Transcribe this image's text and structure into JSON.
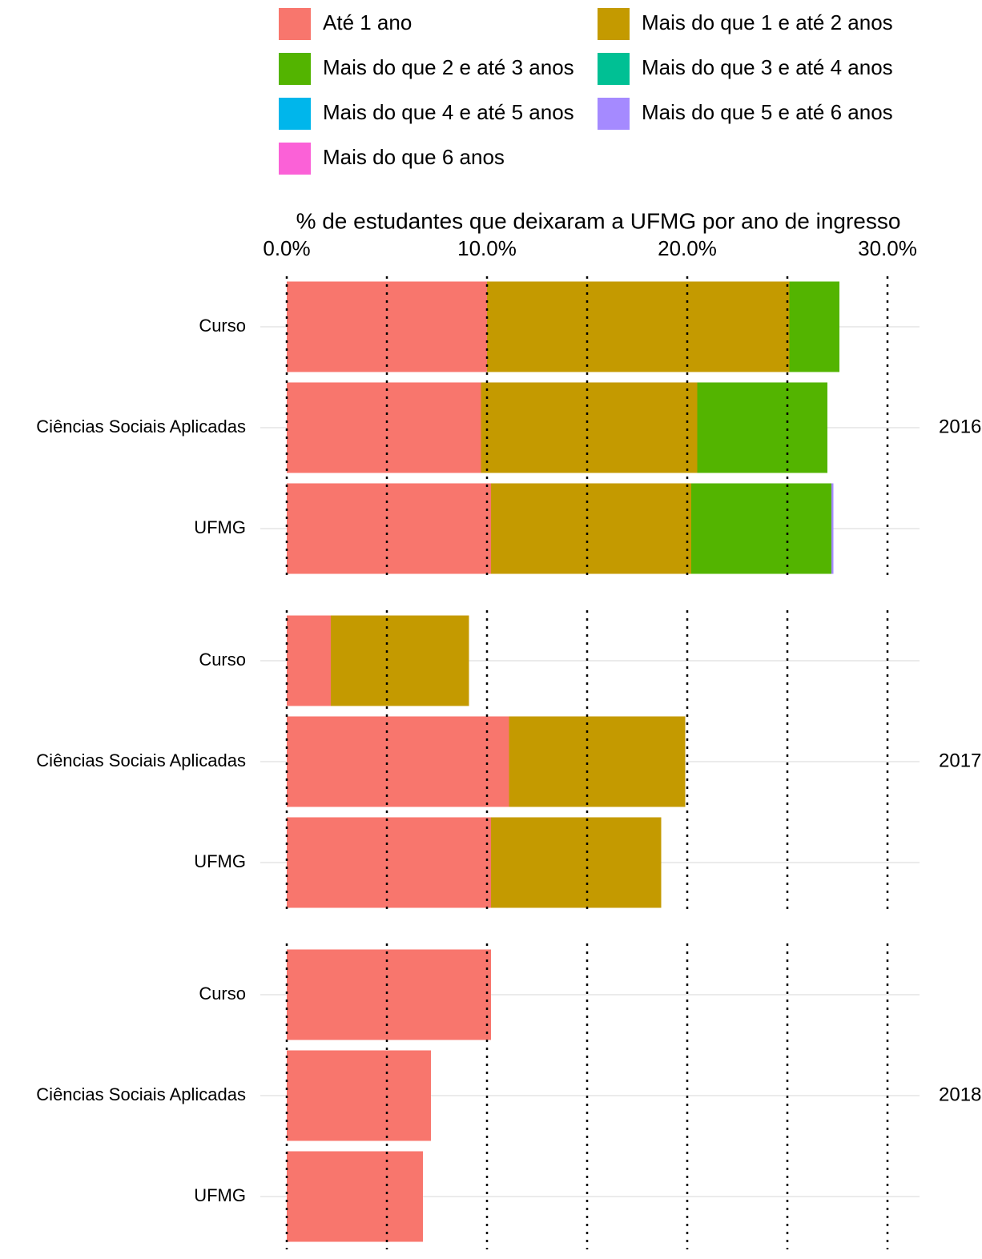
{
  "chart_data": {
    "type": "bar",
    "orientation": "horizontal",
    "stacked": true,
    "x_label": "% de estudantes que deixaram a UFMG por ano de ingresso",
    "groups": [
      "2016",
      "2017",
      "2018"
    ],
    "categories": [
      "Curso",
      "Ciências Sociais Aplicadas",
      "UFMG",
      "Curso",
      "Ciências Sociais Aplicadas",
      "UFMG",
      "Curso",
      "Ciências Sociais Aplicadas",
      "UFMG"
    ],
    "series": [
      {
        "name": "Até 1 ano",
        "color": "#F8766D",
        "values": [
          10.0,
          9.7,
          10.2,
          2.2,
          11.1,
          10.2,
          10.2,
          7.2,
          6.8
        ]
      },
      {
        "name": "Mais do que 1 e até 2 anos",
        "color": "#C49A00",
        "values": [
          15.1,
          10.8,
          10.0,
          6.9,
          8.8,
          8.5,
          0,
          0,
          0
        ]
      },
      {
        "name": "Mais do que 2 e até 3 anos",
        "color": "#53B400",
        "values": [
          2.5,
          6.5,
          7.0,
          0,
          0,
          0,
          0,
          0,
          0
        ]
      },
      {
        "name": "Mais do que 3 e até 4 anos",
        "color": "#00C094",
        "values": [
          0,
          0,
          0,
          0,
          0,
          0,
          0,
          0,
          0
        ]
      },
      {
        "name": "Mais do que 4 e até 5 anos",
        "color": "#00B6EB",
        "values": [
          0,
          0,
          0,
          0,
          0,
          0,
          0,
          0,
          0
        ]
      },
      {
        "name": "Mais do que 5 e até 6 anos",
        "color": "#A58AFF",
        "values": [
          0,
          0,
          0.1,
          0,
          0,
          0,
          0,
          0,
          0
        ]
      },
      {
        "name": "Mais do que 6 anos",
        "color": "#FB61D7",
        "values": [
          0,
          0,
          0,
          0,
          0,
          0,
          0,
          0,
          0
        ]
      }
    ],
    "xlim": [
      -1.32,
      31.6
    ],
    "xticks": [
      {
        "value": 0,
        "label": "0.0%"
      },
      {
        "value": 10,
        "label": "10.0%"
      },
      {
        "value": 20,
        "label": "20.0%"
      },
      {
        "value": 30,
        "label": "30.0%"
      }
    ],
    "xminor": [
      5,
      15,
      25
    ],
    "grid": true,
    "legend": "top"
  }
}
